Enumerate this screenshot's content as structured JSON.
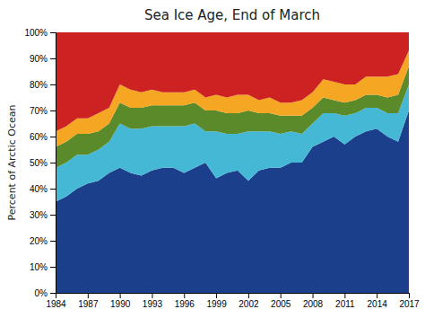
{
  "chart_data": {
    "type": "area",
    "stacked": true,
    "title": "Sea Ice Age, End of March",
    "ylabel": "Percent of Arctic Ocean",
    "x": [
      1984,
      1985,
      1986,
      1987,
      1988,
      1989,
      1990,
      1991,
      1992,
      1993,
      1994,
      1995,
      1996,
      1997,
      1998,
      1999,
      2000,
      2001,
      2002,
      2003,
      2004,
      2005,
      2006,
      2007,
      2008,
      2009,
      2010,
      2011,
      2012,
      2013,
      2014,
      2015,
      2016,
      2017
    ],
    "series": [
      {
        "color": "#1b3f8b",
        "values": [
          35,
          37,
          40,
          42,
          43,
          46,
          48,
          46,
          45,
          47,
          48,
          48,
          46,
          48,
          50,
          44,
          46,
          47,
          43,
          47,
          48,
          48,
          50,
          50,
          56,
          58,
          60,
          57,
          60,
          62,
          63,
          60,
          58,
          70
        ]
      },
      {
        "color": "#44b8d4",
        "values": [
          13,
          13,
          13,
          11,
          12,
          12,
          17,
          17,
          18,
          17,
          16,
          16,
          18,
          17,
          12,
          18,
          15,
          14,
          19,
          15,
          14,
          13,
          12,
          11,
          9,
          11,
          9,
          11,
          9,
          9,
          8,
          9,
          11,
          10
        ]
      },
      {
        "color": "#5a8a29",
        "values": [
          8,
          8,
          8,
          8,
          7,
          7,
          8,
          8,
          8,
          8,
          8,
          8,
          8,
          8,
          8,
          8,
          8,
          8,
          8,
          7,
          7,
          7,
          6,
          7,
          6,
          6,
          5,
          5,
          5,
          5,
          5,
          6,
          7,
          7
        ]
      },
      {
        "color": "#f5a623",
        "values": [
          6,
          6,
          6,
          6,
          7,
          6,
          7,
          7,
          6,
          6,
          5,
          5,
          5,
          5,
          5,
          6,
          6,
          7,
          6,
          5,
          6,
          5,
          5,
          6,
          6,
          7,
          7,
          7,
          6,
          7,
          7,
          8,
          8,
          6
        ]
      },
      {
        "color": "#cc2222",
        "values": [
          38,
          36,
          33,
          33,
          31,
          29,
          20,
          22,
          23,
          22,
          23,
          23,
          23,
          22,
          25,
          24,
          25,
          24,
          24,
          26,
          25,
          27,
          27,
          26,
          23,
          18,
          19,
          20,
          20,
          17,
          17,
          17,
          16,
          7
        ]
      }
    ],
    "xlim": [
      1984,
      2017
    ],
    "xticks": [
      1984,
      1987,
      1990,
      1993,
      1996,
      1999,
      2002,
      2005,
      2008,
      2011,
      2014,
      2017
    ],
    "ylim": [
      0,
      100
    ],
    "yticks": [
      {
        "value": 0,
        "label": "0%"
      },
      {
        "value": 10,
        "label": "10%"
      },
      {
        "value": 20,
        "label": "20%"
      },
      {
        "value": 30,
        "label": "30%"
      },
      {
        "value": 40,
        "label": "40%"
      },
      {
        "value": 50,
        "label": "50%"
      },
      {
        "value": 60,
        "label": "60%"
      },
      {
        "value": 70,
        "label": "70%"
      },
      {
        "value": 80,
        "label": "80%"
      },
      {
        "value": 90,
        "label": "90%"
      },
      {
        "value": 100,
        "label": "100%"
      }
    ]
  }
}
